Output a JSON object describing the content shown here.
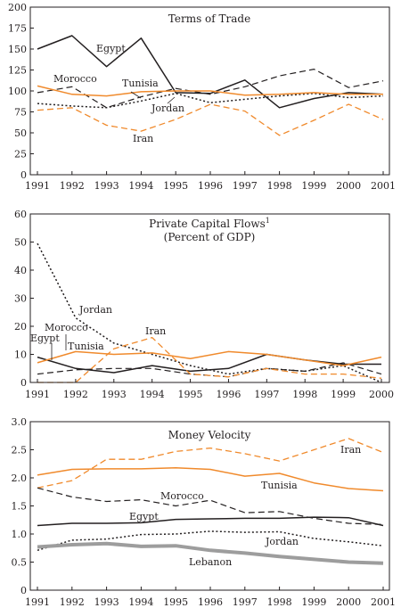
{
  "colors": {
    "black": "#231f20",
    "orange": "#f08a2c",
    "gray": "#9d9d9d"
  },
  "chart_data": [
    {
      "type": "line",
      "title": "Terms of Trade",
      "subtitle": "",
      "x": [
        "1991",
        "1992",
        "1993",
        "1994",
        "1995",
        "1996",
        "1997",
        "1998",
        "1999",
        "2000",
        "2001"
      ],
      "ylim": [
        0,
        200
      ],
      "yticks": [
        0,
        25,
        50,
        75,
        100,
        125,
        150,
        175,
        200
      ],
      "grid": false,
      "series": [
        {
          "name": "Egypt",
          "values": [
            150,
            166,
            129,
            163,
            98,
            97,
            113,
            80,
            91,
            98,
            96
          ],
          "color": "#231f20",
          "dash": "solid",
          "width": 1.5
        },
        {
          "name": "Morocco",
          "values": [
            98,
            105,
            80,
            93,
            103,
            96,
            105,
            118,
            126,
            104,
            112
          ],
          "color": "#231f20",
          "dash": "dashed",
          "width": 1.2
        },
        {
          "name": "Jordan",
          "values": [
            85,
            82,
            80,
            88,
            97,
            86,
            90,
            94,
            97,
            92,
            94
          ],
          "color": "#231f20",
          "dash": "dotted",
          "width": 1.5
        },
        {
          "name": "Tunisia",
          "values": [
            106,
            96,
            94,
            99,
            100,
            100,
            95,
            96,
            98,
            96,
            96
          ],
          "color": "#f08a2c",
          "dash": "solid",
          "width": 1.5
        },
        {
          "name": "Iran",
          "values": [
            77,
            80,
            59,
            52,
            66,
            84,
            76,
            47,
            65,
            84,
            66
          ],
          "color": "#f08a2c",
          "dash": "dashed",
          "width": 1.3
        }
      ]
    },
    {
      "type": "line",
      "title": "Private Capital Flows",
      "title_sup": "1",
      "subtitle": "(Percent of GDP)",
      "x": [
        "1991",
        "1992",
        "1993",
        "1994",
        "1995",
        "1996",
        "1997",
        "1998",
        "1999",
        "2000"
      ],
      "ylim": [
        0,
        60
      ],
      "yticks": [
        0,
        10,
        20,
        30,
        40,
        50,
        60
      ],
      "grid": false,
      "series": [
        {
          "name": "Jordan",
          "values": [
            49.5,
            23,
            14,
            10,
            6,
            3,
            5,
            4,
            6,
            0
          ],
          "color": "#231f20",
          "dash": "dotted",
          "width": 1.5
        },
        {
          "name": "Egypt",
          "values": [
            9,
            5,
            3.5,
            6,
            4,
            5,
            10,
            8,
            6.5,
            6.5
          ],
          "color": "#231f20",
          "dash": "solid",
          "width": 1.5
        },
        {
          "name": "Morocco",
          "values": [
            3,
            4.5,
            5,
            5,
            3,
            2,
            5,
            4,
            7,
            3
          ],
          "color": "#231f20",
          "dash": "dashed",
          "width": 1.2
        },
        {
          "name": "Tunisia",
          "values": [
            7,
            11,
            10,
            10.5,
            8.5,
            11,
            10,
            8,
            6,
            9
          ],
          "color": "#f08a2c",
          "dash": "solid",
          "width": 1.5
        },
        {
          "name": "Iran",
          "values": [
            0,
            0,
            12,
            16,
            3,
            2,
            5,
            3,
            3,
            1.5
          ],
          "color": "#f08a2c",
          "dash": "dashed",
          "width": 1.3
        }
      ]
    },
    {
      "type": "line",
      "title": "Money Velocity",
      "subtitle": "",
      "x": [
        "1991",
        "1992",
        "1993",
        "1994",
        "1995",
        "1996",
        "1997",
        "1998",
        "1999",
        "2000",
        "2001"
      ],
      "ylim": [
        0,
        3
      ],
      "yticks": [
        "0",
        "0.5",
        "1.0",
        "1.5",
        "2.0",
        "2.5",
        "3.0"
      ],
      "grid": false,
      "series": [
        {
          "name": "Iran",
          "values": [
            1.82,
            1.95,
            2.33,
            2.33,
            2.47,
            2.53,
            2.43,
            2.3,
            2.5,
            2.7,
            2.45
          ],
          "color": "#f08a2c",
          "dash": "dashed",
          "width": 1.3
        },
        {
          "name": "Tunisia",
          "values": [
            2.05,
            2.15,
            2.16,
            2.16,
            2.18,
            2.15,
            2.03,
            2.08,
            1.91,
            1.81,
            1.77
          ],
          "color": "#f08a2c",
          "dash": "solid",
          "width": 1.5
        },
        {
          "name": "Morocco",
          "values": [
            1.82,
            1.66,
            1.58,
            1.61,
            1.5,
            1.6,
            1.38,
            1.4,
            1.28,
            1.19,
            1.17
          ],
          "color": "#231f20",
          "dash": "dashed",
          "width": 1.2
        },
        {
          "name": "Egypt",
          "values": [
            1.15,
            1.19,
            1.19,
            1.2,
            1.26,
            1.27,
            1.28,
            1.28,
            1.3,
            1.29,
            1.15
          ],
          "color": "#231f20",
          "dash": "solid",
          "width": 1.5
        },
        {
          "name": "Jordan",
          "values": [
            0.71,
            0.89,
            0.91,
            0.99,
            1.0,
            1.05,
            1.03,
            1.04,
            0.92,
            0.86,
            0.79
          ],
          "color": "#231f20",
          "dash": "dotted",
          "width": 1.5
        },
        {
          "name": "Lebanon",
          "values": [
            0.77,
            0.81,
            0.83,
            0.78,
            0.79,
            0.71,
            0.66,
            0.6,
            0.55,
            0.5,
            0.48
          ],
          "color": "#9d9d9d",
          "dash": "solid",
          "width": 4
        }
      ]
    }
  ]
}
